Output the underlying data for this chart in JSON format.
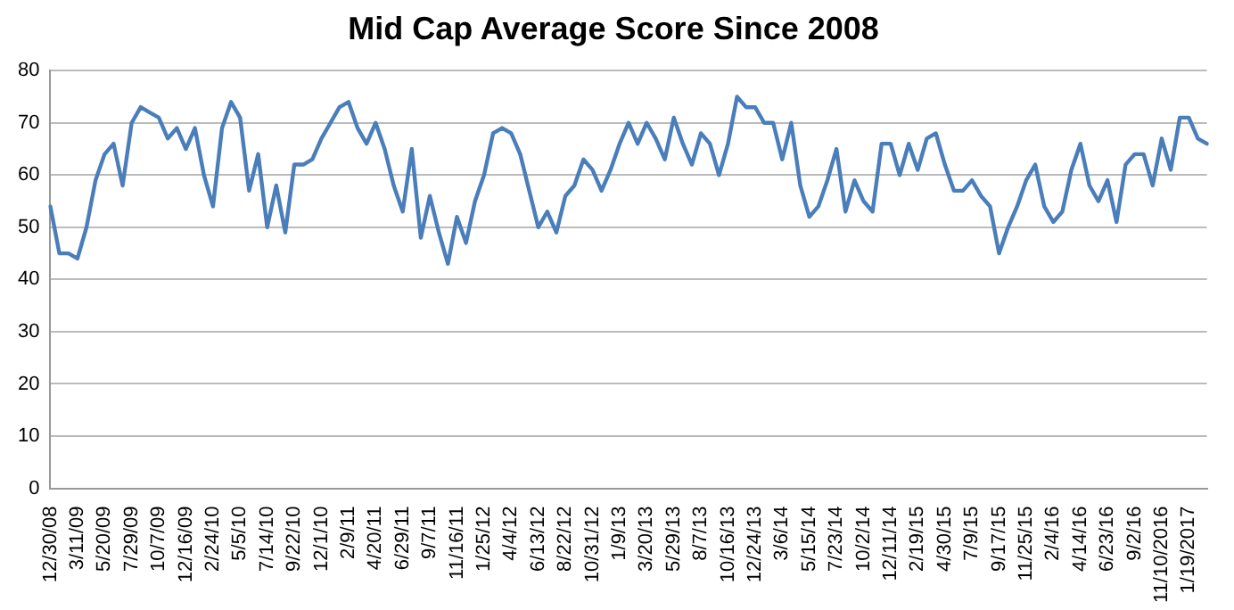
{
  "chart_data": {
    "type": "line",
    "title": "Mid Cap Average Score Since 2008",
    "categories": [
      "12/30/08",
      null,
      null,
      "3/11/09",
      null,
      null,
      "5/20/09",
      null,
      null,
      "7/29/09",
      null,
      null,
      "10/7/09",
      null,
      null,
      "12/16/09",
      null,
      null,
      "2/24/10",
      null,
      null,
      "5/5/10",
      null,
      null,
      "7/14/10",
      null,
      null,
      "9/22/10",
      null,
      null,
      "12/1/10",
      null,
      null,
      "2/9/11",
      null,
      null,
      "4/20/11",
      null,
      null,
      "6/29/11",
      null,
      null,
      "9/7/11",
      null,
      null,
      "11/16/11",
      null,
      null,
      "1/25/12",
      null,
      null,
      "4/4/12",
      null,
      null,
      "6/13/12",
      null,
      null,
      "8/22/12",
      null,
      null,
      "10/31/12",
      null,
      null,
      "1/9/13",
      null,
      null,
      "3/20/13",
      null,
      null,
      "5/29/13",
      null,
      null,
      "8/7/13",
      null,
      null,
      "10/16/13",
      null,
      null,
      "12/24/13",
      null,
      null,
      "3/6/14",
      null,
      null,
      "5/15/14",
      null,
      null,
      "7/23/14",
      null,
      null,
      "10/2/14",
      null,
      null,
      "12/11/14",
      null,
      null,
      "2/19/15",
      null,
      null,
      "4/30/15",
      null,
      null,
      "7/9/15",
      null,
      null,
      "9/17/15",
      null,
      null,
      "11/25/15",
      null,
      null,
      "2/4/16",
      null,
      null,
      "4/14/16",
      null,
      null,
      "6/23/16",
      null,
      null,
      "9/2/16",
      null,
      null,
      "11/10/2016",
      null,
      null,
      "1/19/2017",
      null,
      null
    ],
    "values": [
      54,
      45,
      45,
      44,
      50,
      59,
      64,
      66,
      58,
      70,
      73,
      72,
      71,
      67,
      69,
      65,
      69,
      60,
      54,
      69,
      74,
      71,
      57,
      64,
      50,
      58,
      49,
      62,
      62,
      63,
      67,
      70,
      73,
      74,
      69,
      66,
      70,
      65,
      58,
      53,
      65,
      48,
      56,
      49,
      43,
      52,
      47,
      55,
      60,
      68,
      69,
      68,
      64,
      57,
      50,
      53,
      49,
      56,
      58,
      63,
      61,
      57,
      61,
      66,
      70,
      66,
      70,
      67,
      63,
      71,
      66,
      62,
      68,
      66,
      60,
      66,
      75,
      73,
      73,
      70,
      70,
      63,
      70,
      58,
      52,
      54,
      59,
      65,
      53,
      59,
      55,
      53,
      66,
      66,
      60,
      66,
      61,
      67,
      68,
      62,
      57,
      57,
      59,
      56,
      54,
      45,
      50,
      54,
      59,
      62,
      54,
      51,
      53,
      61,
      66,
      58,
      55,
      59,
      51,
      62,
      64,
      64,
      58,
      67,
      61,
      71,
      71,
      67,
      66
    ],
    "color": "#4a7ebb",
    "ylim": [
      0,
      80
    ],
    "yticks": [
      0,
      10,
      20,
      30,
      40,
      50,
      60,
      70,
      80
    ],
    "grid": "y"
  }
}
